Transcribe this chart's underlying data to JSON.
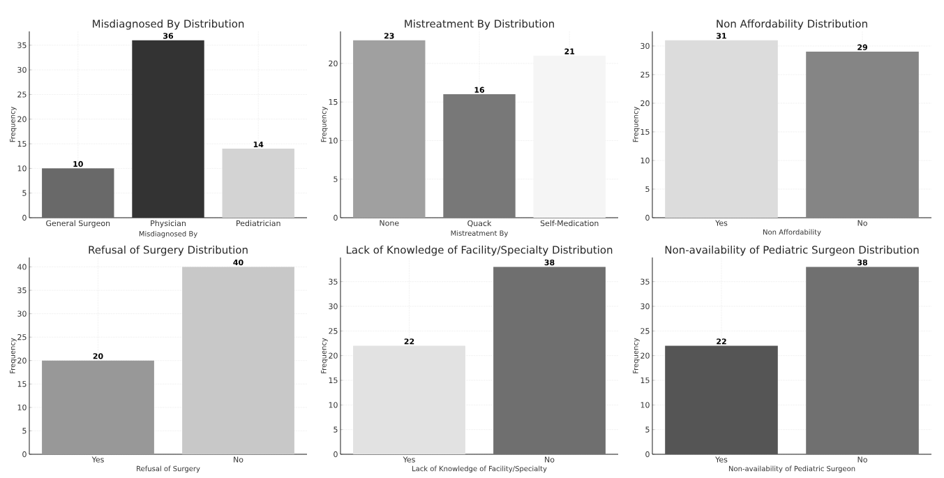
{
  "chart_data": [
    {
      "type": "bar",
      "title": "Misdiagnosed By Distribution",
      "xlabel": "Misdiagnosed By",
      "ylabel": "Frequency",
      "categories": [
        "General Surgeon",
        "Physician",
        "Pediatrician"
      ],
      "values": [
        10,
        36,
        14
      ],
      "colors": [
        "#696969",
        "#333333",
        "#d3d3d3"
      ],
      "ylim": [
        0,
        37.8
      ],
      "yticks": [
        0,
        5,
        10,
        15,
        20,
        25,
        30,
        35
      ],
      "grid": true,
      "data_labels": true
    },
    {
      "type": "bar",
      "title": "Mistreatment By Distribution",
      "xlabel": "Mistreatment By",
      "ylabel": "Frequency",
      "categories": [
        "None",
        "Quack",
        "Self-Medication"
      ],
      "values": [
        23,
        16,
        21
      ],
      "colors": [
        "#a0a0a0",
        "#787878",
        "#f5f5f5"
      ],
      "ylim": [
        0,
        24.15
      ],
      "yticks": [
        0,
        5,
        10,
        15,
        20
      ],
      "grid": true,
      "data_labels": true
    },
    {
      "type": "bar",
      "title": "Non Affordability Distribution",
      "xlabel": "Non Affordability",
      "ylabel": "Frequency",
      "categories": [
        "Yes",
        "No"
      ],
      "values": [
        31,
        29
      ],
      "colors": [
        "#dcdcdc",
        "#858585"
      ],
      "ylim": [
        0,
        32.55
      ],
      "yticks": [
        0,
        5,
        10,
        15,
        20,
        25,
        30
      ],
      "grid": true,
      "data_labels": true
    },
    {
      "type": "bar",
      "title": "Refusal of Surgery Distribution",
      "xlabel": "Refusal of Surgery",
      "ylabel": "Frequency",
      "categories": [
        "Yes",
        "No"
      ],
      "values": [
        20,
        40
      ],
      "colors": [
        "#989898",
        "#c8c8c8"
      ],
      "ylim": [
        0,
        42
      ],
      "yticks": [
        0,
        5,
        10,
        15,
        20,
        25,
        30,
        35,
        40
      ],
      "grid": true,
      "data_labels": true
    },
    {
      "type": "bar",
      "title": "Lack of Knowledge of Facility/Specialty Distribution",
      "xlabel": "Lack of Knowledge of Facility/Specialty",
      "ylabel": "Frequency",
      "categories": [
        "Yes",
        "No"
      ],
      "values": [
        22,
        38
      ],
      "colors": [
        "#e2e2e2",
        "#6f6f6f"
      ],
      "ylim": [
        0,
        39.9
      ],
      "yticks": [
        0,
        5,
        10,
        15,
        20,
        25,
        30,
        35
      ],
      "grid": true,
      "data_labels": true
    },
    {
      "type": "bar",
      "title": "Non-availability of Pediatric Surgeon Distribution",
      "xlabel": "Non-availability of Pediatric Surgeon",
      "ylabel": "Frequency",
      "categories": [
        "Yes",
        "No"
      ],
      "values": [
        22,
        38
      ],
      "colors": [
        "#555555",
        "#707070"
      ],
      "ylim": [
        0,
        39.9
      ],
      "yticks": [
        0,
        5,
        10,
        15,
        20,
        25,
        30,
        35
      ],
      "grid": true,
      "data_labels": true
    }
  ]
}
